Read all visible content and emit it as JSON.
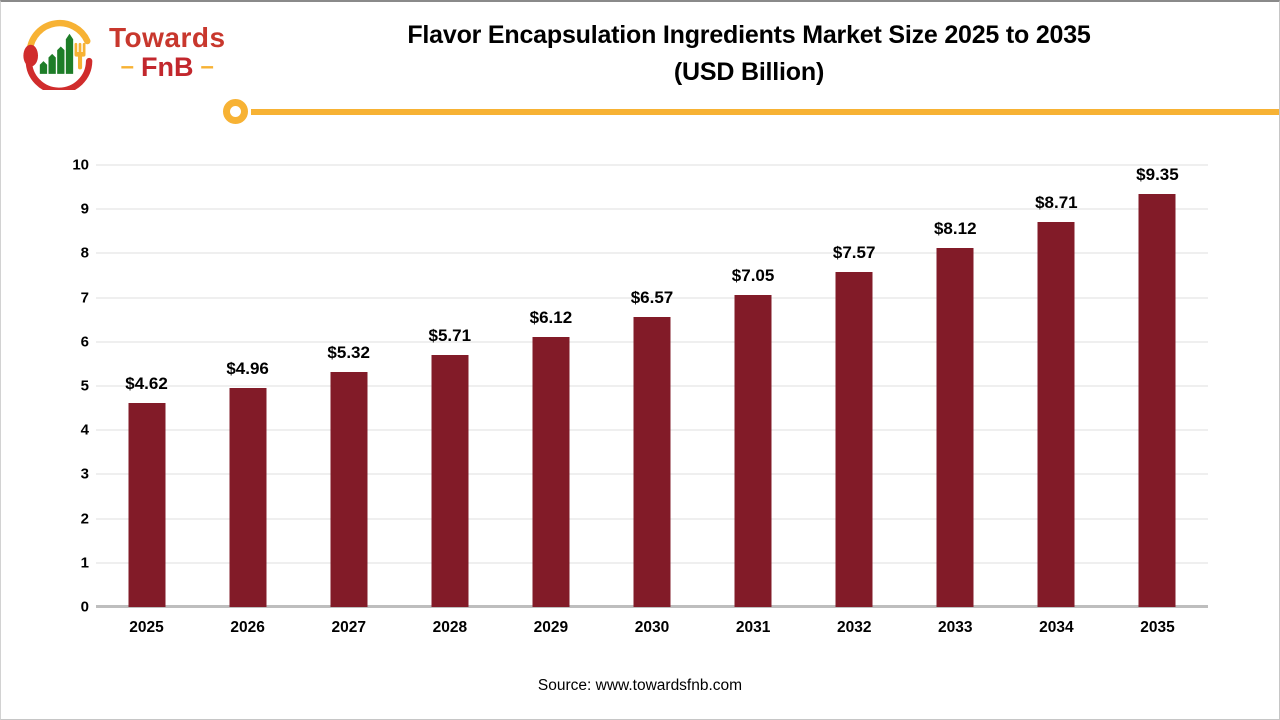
{
  "window": {
    "background": "#ffffff",
    "border_color": "#c6c6c6"
  },
  "logo": {
    "brand_top": "Towards",
    "brand_bottom": "FnB",
    "dash_left": "–",
    "dash_right": "–",
    "colors": {
      "red": "#c8372d",
      "dark_red": "#c2272d",
      "yellow": "#f7b234",
      "green": "#1e7d28"
    }
  },
  "header": {
    "title_line1": "Flavor Encapsulation Ingredients Market Size 2025 to 2035",
    "title_line2": "(USD Billion)"
  },
  "divider": {
    "color": "#f7b234"
  },
  "chart_data": {
    "type": "bar",
    "title": "Flavor Encapsulation Ingredients Market Size 2025 to 2035 (USD Billion)",
    "categories": [
      "2025",
      "2026",
      "2027",
      "2028",
      "2029",
      "2030",
      "2031",
      "2032",
      "2033",
      "2034",
      "2035"
    ],
    "values": [
      4.62,
      4.96,
      5.32,
      5.71,
      6.12,
      6.57,
      7.05,
      7.57,
      8.12,
      8.71,
      9.35
    ],
    "value_labels": [
      "$4.62",
      "$4.96",
      "$5.32",
      "$5.71",
      "$6.12",
      "$6.57",
      "$7.05",
      "$7.57",
      "$8.12",
      "$8.71",
      "$9.35"
    ],
    "xlabel": "",
    "ylabel": "",
    "ylim": [
      0,
      10
    ],
    "ytick_interval": 1,
    "ytick_labels": [
      "0",
      "1",
      "2",
      "3",
      "4",
      "5",
      "6",
      "7",
      "8",
      "9",
      "10"
    ],
    "grid": true,
    "legend": false,
    "bar_color": "#821b28",
    "gridline_color": "#efefef",
    "baseline_color": "#bebebe",
    "label_color": "#000000"
  },
  "footer": {
    "source": "Source: www.towardsfnb.com"
  }
}
